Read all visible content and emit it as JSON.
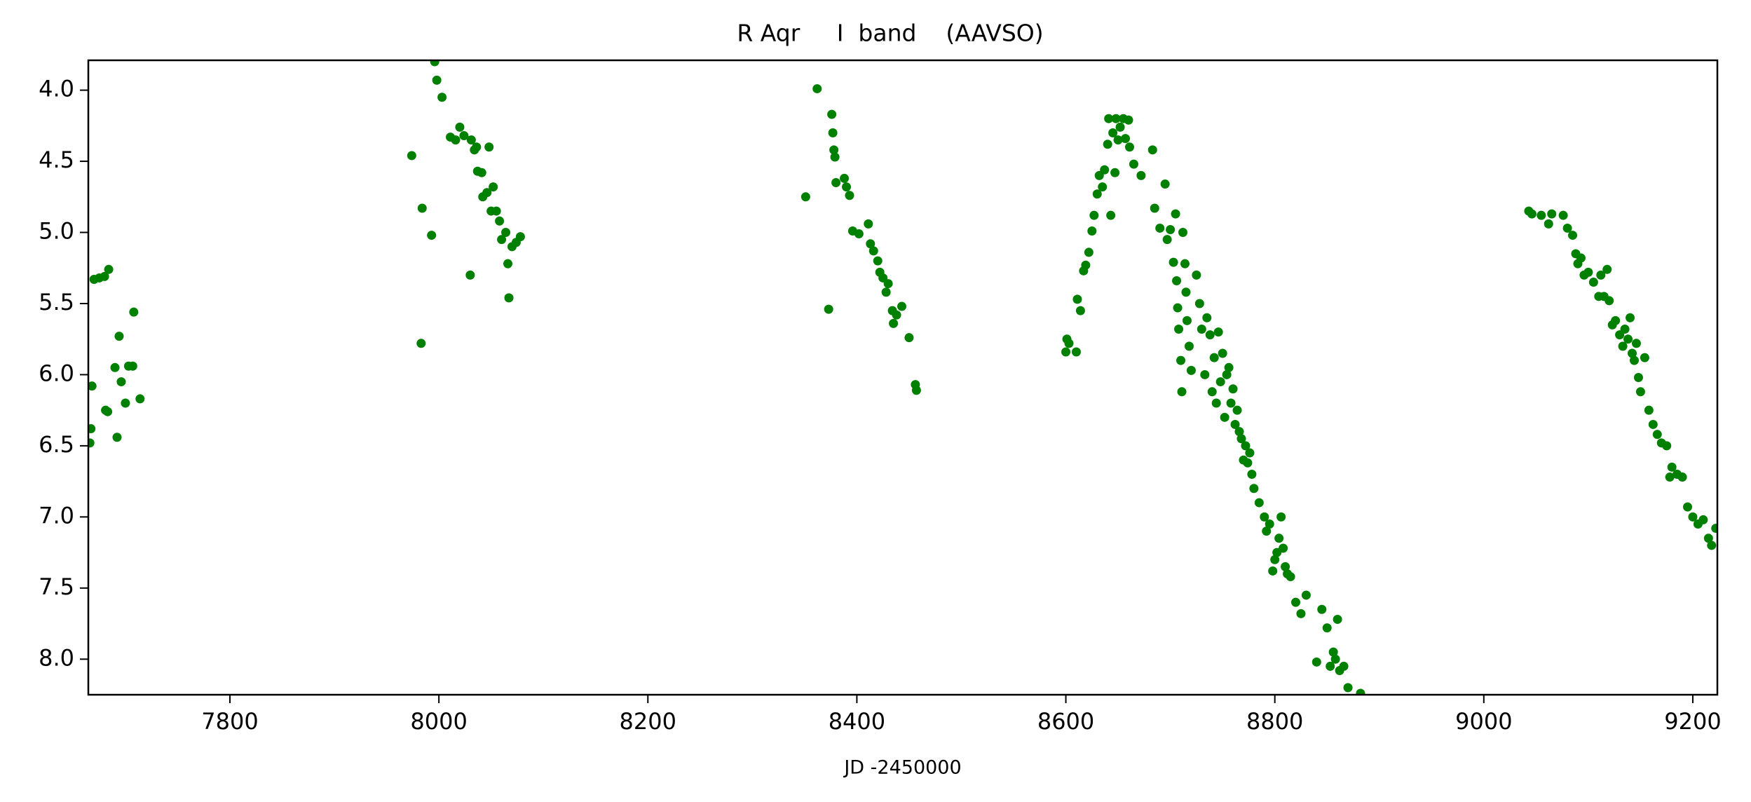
{
  "chart_data": {
    "type": "scatter",
    "title": "R Aqr     I  band    (AAVSO)",
    "x_label": "JD -2450000",
    "xlim": [
      7664.5,
      9223.5
    ],
    "xticks": [
      7800,
      8000,
      8200,
      8400,
      8600,
      8800,
      9000,
      9200
    ],
    "ylim": [
      8.25,
      3.79
    ],
    "yticks": [
      {
        "value": 4,
        "label": "4.0"
      },
      {
        "value": 4.5,
        "label": "4.5"
      },
      {
        "value": 5,
        "label": "5.0"
      },
      {
        "value": 5.5,
        "label": "5.5"
      },
      {
        "value": 6,
        "label": "6.0"
      },
      {
        "value": 6.5,
        "label": "6.5"
      },
      {
        "value": 7,
        "label": "7.0"
      },
      {
        "value": 7.5,
        "label": "7.5"
      },
      {
        "value": 8,
        "label": "8.0"
      }
    ],
    "grid": false,
    "series": [
      {
        "color": "#008000",
        "x": [
          7666,
          7667,
          7668,
          7670,
          7675,
          7680,
          7681,
          7683,
          7684,
          7690,
          7692,
          7694,
          7696,
          7700,
          7703,
          7707,
          7708,
          7714,
          7974,
          7983,
          7984,
          7993,
          7996,
          7998,
          8003,
          8011,
          8016,
          8020,
          8024,
          8030,
          8031,
          8034,
          8036,
          8037,
          8041,
          8042,
          8046,
          8048,
          8050,
          8052,
          8055,
          8058,
          8060,
          8064,
          8066,
          8067,
          8070,
          8074,
          8078,
          8351,
          8362,
          8373,
          8376,
          8377,
          8378,
          8379,
          8380,
          8388,
          8390,
          8393,
          8396,
          8402,
          8411,
          8413,
          8416,
          8420,
          8422,
          8425,
          8428,
          8430,
          8434,
          8435,
          8438,
          8443,
          8450,
          8456,
          8457,
          8600,
          8601,
          8603,
          8610,
          8611,
          8614,
          8617,
          8619,
          8622,
          8625,
          8627,
          8630,
          8632,
          8635,
          8637,
          8640,
          8641,
          8643,
          8645,
          8647,
          8648,
          8650,
          8652,
          8655,
          8657,
          8660,
          8661,
          8665,
          8672,
          8683,
          8685,
          8690,
          8695,
          8697,
          8700,
          8703,
          8705,
          8706,
          8707,
          8708,
          8710,
          8711,
          8712,
          8714,
          8715,
          8716,
          8718,
          8720,
          8725,
          8728,
          8730,
          8733,
          8735,
          8738,
          8740,
          8742,
          8744,
          8746,
          8748,
          8750,
          8752,
          8754,
          8756,
          8758,
          8760,
          8762,
          8764,
          8766,
          8768,
          8770,
          8772,
          8774,
          8776,
          8778,
          8780,
          8785,
          8790,
          8792,
          8795,
          8798,
          8800,
          8802,
          8804,
          8806,
          8808,
          8810,
          8812,
          8815,
          8820,
          8825,
          8830,
          8840,
          8845,
          8850,
          8853,
          8856,
          8858,
          8860,
          8862,
          8866,
          8870,
          8882,
          9043,
          9046,
          9055,
          9062,
          9065,
          9076,
          9080,
          9085,
          9088,
          9090,
          9093,
          9096,
          9100,
          9105,
          9110,
          9112,
          9115,
          9118,
          9120,
          9123,
          9126,
          9130,
          9133,
          9135,
          9138,
          9140,
          9142,
          9144,
          9146,
          9148,
          9150,
          9154,
          9158,
          9162,
          9166,
          9170,
          9175,
          9178,
          9180,
          9185,
          9190,
          9195,
          9200,
          9205,
          9210,
          9215,
          9218,
          9222
        ],
        "values": [
          6.48,
          6.38,
          6.08,
          5.33,
          5.32,
          5.31,
          6.25,
          6.26,
          5.26,
          5.95,
          6.44,
          5.73,
          6.05,
          6.2,
          5.94,
          5.94,
          5.56,
          6.17,
          4.46,
          5.78,
          4.83,
          5.02,
          3.8,
          3.93,
          4.05,
          4.33,
          4.35,
          4.26,
          4.32,
          5.3,
          4.35,
          4.42,
          4.4,
          4.57,
          4.58,
          4.75,
          4.72,
          4.4,
          4.85,
          4.68,
          4.85,
          4.92,
          5.05,
          5.0,
          5.22,
          5.46,
          5.1,
          5.07,
          5.03,
          4.75,
          3.99,
          5.54,
          4.17,
          4.3,
          4.42,
          4.47,
          4.65,
          4.62,
          4.68,
          4.74,
          4.99,
          5.01,
          4.94,
          5.08,
          5.13,
          5.2,
          5.28,
          5.32,
          5.42,
          5.36,
          5.55,
          5.64,
          5.58,
          5.52,
          5.74,
          6.07,
          6.11,
          5.84,
          5.75,
          5.78,
          5.84,
          5.47,
          5.55,
          5.27,
          5.23,
          5.14,
          4.99,
          4.88,
          4.73,
          4.6,
          4.68,
          4.56,
          4.38,
          4.2,
          4.88,
          4.3,
          4.58,
          4.2,
          4.35,
          4.26,
          4.2,
          4.34,
          4.21,
          4.4,
          4.52,
          4.6,
          4.42,
          4.83,
          4.97,
          4.66,
          5.05,
          4.98,
          5.21,
          4.87,
          5.34,
          5.53,
          5.68,
          5.9,
          6.12,
          5.0,
          5.22,
          5.42,
          5.62,
          5.8,
          5.97,
          5.3,
          5.5,
          5.68,
          6.0,
          5.6,
          5.72,
          6.12,
          5.88,
          6.2,
          5.7,
          6.05,
          5.85,
          6.3,
          6.0,
          5.95,
          6.2,
          6.1,
          6.35,
          6.25,
          6.4,
          6.45,
          6.6,
          6.5,
          6.62,
          6.55,
          6.7,
          6.8,
          6.9,
          7.0,
          7.1,
          7.05,
          7.38,
          7.3,
          7.25,
          7.15,
          7.0,
          7.22,
          7.35,
          7.4,
          7.42,
          7.6,
          7.68,
          7.55,
          8.02,
          7.65,
          7.78,
          8.05,
          7.95,
          8.0,
          7.72,
          8.08,
          8.05,
          8.2,
          8.24,
          4.85,
          4.87,
          4.88,
          4.94,
          4.87,
          4.88,
          4.97,
          5.02,
          5.15,
          5.22,
          5.18,
          5.3,
          5.28,
          5.35,
          5.45,
          5.3,
          5.45,
          5.26,
          5.48,
          5.65,
          5.62,
          5.72,
          5.8,
          5.68,
          5.75,
          5.6,
          5.85,
          5.9,
          5.78,
          6.02,
          6.12,
          5.88,
          6.25,
          6.35,
          6.42,
          6.48,
          6.5,
          6.72,
          6.65,
          6.7,
          6.72,
          6.93,
          7.0,
          7.05,
          7.02,
          7.15,
          7.2,
          7.08
        ]
      }
    ]
  }
}
